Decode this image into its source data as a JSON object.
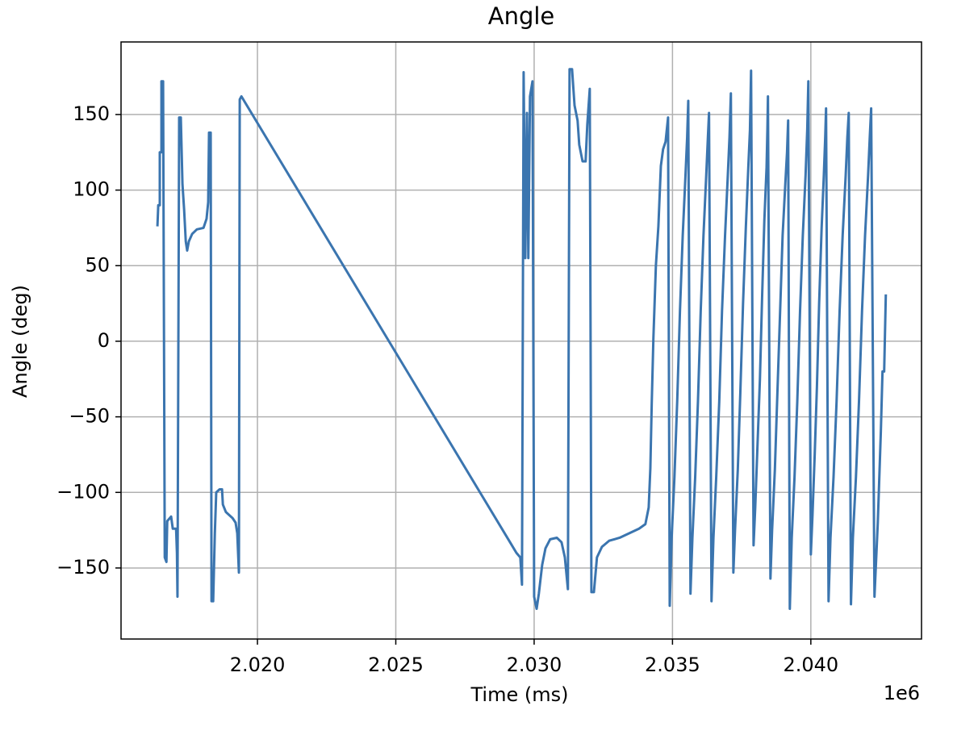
{
  "chart_data": {
    "type": "line",
    "title": "Angle",
    "xlabel": "Time (ms)",
    "ylabel": "Angle (deg)",
    "x_offset_label": "1e6",
    "color": "#3b75af",
    "grid": true,
    "xlim": [
      2015070,
      2044000
    ],
    "ylim": [
      -197,
      198
    ],
    "xticks": [
      {
        "value": 2020000,
        "label": "2.020"
      },
      {
        "value": 2025000,
        "label": "2.025"
      },
      {
        "value": 2030000,
        "label": "2.030"
      },
      {
        "value": 2035000,
        "label": "2.035"
      },
      {
        "value": 2040000,
        "label": "2.040"
      }
    ],
    "yticks": [
      {
        "value": -150,
        "label": "−150"
      },
      {
        "value": -100,
        "label": "−100"
      },
      {
        "value": -50,
        "label": "−50"
      },
      0,
      50,
      100,
      150
    ],
    "x": [
      2016385,
      2016415,
      2016470,
      2016470,
      2016530,
      2016530,
      2016590,
      2016650,
      2016710,
      2016740,
      2016880,
      2016940,
      2017060,
      2017090,
      2017110,
      2017170,
      2017230,
      2017290,
      2017350,
      2017410,
      2017460,
      2017520,
      2017640,
      2017810,
      2018050,
      2018160,
      2018220,
      2018250,
      2018310,
      2018340,
      2018400,
      2018460,
      2018510,
      2018630,
      2018720,
      2018750,
      2018860,
      2019100,
      2019210,
      2019270,
      2019330,
      2019360,
      2019420,
      2029360,
      2029500,
      2029560,
      2029620,
      2029680,
      2029740,
      2029790,
      2029850,
      2029940,
      2030000,
      2030090,
      2030170,
      2030290,
      2030410,
      2030580,
      2030820,
      2030990,
      2031110,
      2031220,
      2031280,
      2031370,
      2031460,
      2031570,
      2031630,
      2031750,
      2031860,
      2031920,
      2032010,
      2032070,
      2032160,
      2032270,
      2032450,
      2032710,
      2033090,
      2033440,
      2033790,
      2034020,
      2034140,
      2034200,
      2034250,
      2034310,
      2034400,
      2034490,
      2034580,
      2034660,
      2034750,
      2034840,
      2034900,
      2034970,
      2035070,
      2035170,
      2035270,
      2035370,
      2035470,
      2035530,
      2035570,
      2035650,
      2035720,
      2035820,
      2035920,
      2036020,
      2036120,
      2036220,
      2036280,
      2036320,
      2036410,
      2036480,
      2036580,
      2036690,
      2036790,
      2036900,
      2037000,
      2037060,
      2037110,
      2037200,
      2037260,
      2037360,
      2037450,
      2037550,
      2037650,
      2037740,
      2037800,
      2037840,
      2037930,
      2037990,
      2038070,
      2038160,
      2038240,
      2038320,
      2038400,
      2038430,
      2038450,
      2038540,
      2038600,
      2038700,
      2038790,
      2038890,
      2038980,
      2039080,
      2039140,
      2039180,
      2039240,
      2039310,
      2039410,
      2039510,
      2039610,
      2039710,
      2039810,
      2039870,
      2039910,
      2040000,
      2040060,
      2040140,
      2040220,
      2040300,
      2040390,
      2040470,
      2040520,
      2040550,
      2040640,
      2040710,
      2040820,
      2040930,
      2041040,
      2041150,
      2041260,
      2041320,
      2041370,
      2041450,
      2041520,
      2041630,
      2041740,
      2041850,
      2041960,
      2042070,
      2042130,
      2042180,
      2042300,
      2042420,
      2042530,
      2042590,
      2042650,
      2042710
    ],
    "values": [
      76,
      90,
      90,
      125,
      125,
      172,
      172,
      -143,
      -146,
      -119,
      -116,
      -124,
      -124,
      -140,
      -169,
      148,
      148,
      104,
      87,
      66,
      60,
      66,
      71,
      74,
      75,
      81,
      92,
      138,
      138,
      -172,
      -172,
      -127,
      -100,
      -98,
      -98,
      -108,
      -113,
      -117,
      -120,
      -127,
      -153,
      160,
      162,
      -140,
      -143,
      -161,
      178,
      55,
      151,
      55,
      162,
      172,
      -169,
      -177,
      -167,
      -148,
      -137,
      -131,
      -130,
      -133,
      -143,
      -164,
      180,
      180,
      156,
      146,
      130,
      119,
      119,
      143,
      167,
      -166,
      -166,
      -143,
      -136,
      -132,
      -130,
      -127,
      -124,
      -121,
      -110,
      -84,
      -41,
      2,
      50,
      76,
      116,
      127,
      132,
      148,
      -175,
      -130,
      -90,
      -40,
      20,
      70,
      110,
      135,
      159,
      -167,
      -130,
      -90,
      -40,
      20,
      70,
      110,
      135,
      151,
      -172,
      -130,
      -90,
      -40,
      20,
      70,
      110,
      135,
      164,
      -153,
      -125,
      -85,
      -35,
      25,
      75,
      115,
      140,
      179,
      -135,
      -110,
      -70,
      -25,
      30,
      80,
      115,
      140,
      162,
      -157,
      -125,
      -85,
      -35,
      20,
      70,
      105,
      125,
      146,
      -177,
      -130,
      -90,
      -40,
      20,
      70,
      110,
      140,
      172,
      -141,
      -115,
      -75,
      -30,
      25,
      75,
      110,
      135,
      154,
      -172,
      -130,
      -90,
      -40,
      20,
      70,
      110,
      135,
      151,
      -174,
      -130,
      -90,
      -40,
      20,
      70,
      110,
      135,
      154,
      -169,
      -120,
      -60,
      -20,
      -20,
      31
    ]
  }
}
